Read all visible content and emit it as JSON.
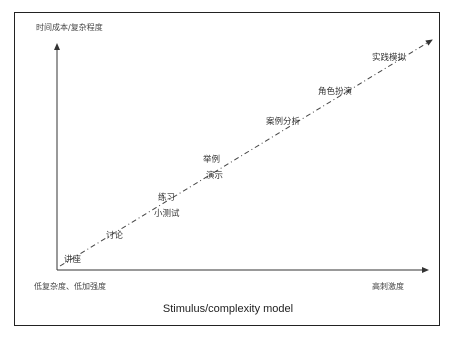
{
  "diagram": {
    "y_axis_label": "时间成本/复杂程度",
    "x_axis_start_label": "低复杂度、低加强度",
    "x_axis_end_label": "高刺激度",
    "caption": "Stimulus/complexity model",
    "stages": [
      {
        "line1": "讲座",
        "line2": ""
      },
      {
        "line1": "讨论",
        "line2": ""
      },
      {
        "line1": "练习",
        "line2": "小测试"
      },
      {
        "line1": "举例",
        "line2": "演示"
      },
      {
        "line1": "案例分析",
        "line2": ""
      },
      {
        "line1": "角色扮演",
        "line2": ""
      },
      {
        "line1": "实践模拟",
        "line2": ""
      }
    ]
  }
}
